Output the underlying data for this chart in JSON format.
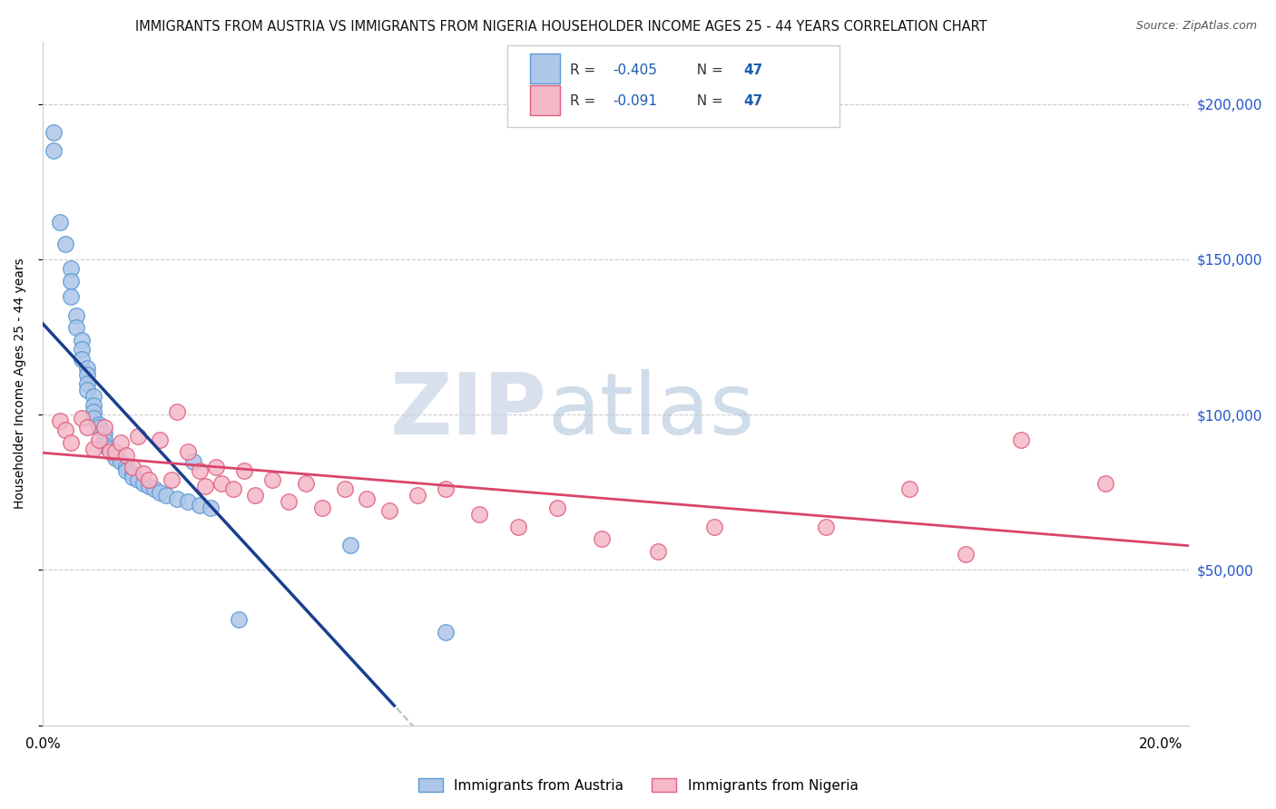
{
  "title": "IMMIGRANTS FROM AUSTRIA VS IMMIGRANTS FROM NIGERIA HOUSEHOLDER INCOME AGES 25 - 44 YEARS CORRELATION CHART",
  "source": "Source: ZipAtlas.com",
  "ylabel": "Householder Income Ages 25 - 44 years",
  "xlim": [
    0,
    0.205
  ],
  "ylim": [
    0,
    220000
  ],
  "austria_color": "#aec6e8",
  "austria_edge": "#5b9bd5",
  "nigeria_color": "#f4b8c8",
  "nigeria_edge": "#e06080",
  "austria_line_color": "#1a3f8f",
  "nigeria_line_color": "#d9446a",
  "R_austria": -0.405,
  "N_austria": 47,
  "R_nigeria": -0.091,
  "N_nigeria": 47,
  "austria_x": [
    0.002,
    0.002,
    0.003,
    0.004,
    0.005,
    0.005,
    0.005,
    0.006,
    0.006,
    0.007,
    0.007,
    0.007,
    0.008,
    0.008,
    0.008,
    0.008,
    0.009,
    0.009,
    0.009,
    0.009,
    0.01,
    0.01,
    0.011,
    0.011,
    0.011,
    0.012,
    0.013,
    0.013,
    0.014,
    0.015,
    0.015,
    0.016,
    0.016,
    0.017,
    0.018,
    0.019,
    0.02,
    0.021,
    0.022,
    0.024,
    0.026,
    0.027,
    0.028,
    0.03,
    0.035,
    0.055,
    0.072
  ],
  "austria_y": [
    191000,
    185000,
    162000,
    155000,
    147000,
    143000,
    138000,
    132000,
    128000,
    124000,
    121000,
    118000,
    115000,
    113000,
    110000,
    108000,
    106000,
    103000,
    101000,
    99000,
    97000,
    96000,
    94000,
    92000,
    90000,
    89000,
    87000,
    86000,
    85000,
    83000,
    82000,
    81000,
    80000,
    79000,
    78000,
    77000,
    76000,
    75000,
    74000,
    73000,
    72000,
    85000,
    71000,
    70000,
    34000,
    58000,
    30000
  ],
  "nigeria_x": [
    0.003,
    0.004,
    0.005,
    0.007,
    0.008,
    0.009,
    0.01,
    0.011,
    0.012,
    0.013,
    0.014,
    0.015,
    0.016,
    0.017,
    0.018,
    0.019,
    0.021,
    0.023,
    0.024,
    0.026,
    0.028,
    0.029,
    0.031,
    0.032,
    0.034,
    0.036,
    0.038,
    0.041,
    0.044,
    0.047,
    0.05,
    0.054,
    0.058,
    0.062,
    0.067,
    0.072,
    0.078,
    0.085,
    0.092,
    0.1,
    0.11,
    0.12,
    0.14,
    0.155,
    0.165,
    0.175,
    0.19
  ],
  "nigeria_y": [
    98000,
    95000,
    91000,
    99000,
    96000,
    89000,
    92000,
    96000,
    88000,
    88000,
    91000,
    87000,
    83000,
    93000,
    81000,
    79000,
    92000,
    79000,
    101000,
    88000,
    82000,
    77000,
    83000,
    78000,
    76000,
    82000,
    74000,
    79000,
    72000,
    78000,
    70000,
    76000,
    73000,
    69000,
    74000,
    76000,
    68000,
    64000,
    70000,
    60000,
    56000,
    64000,
    64000,
    76000,
    55000,
    92000,
    78000
  ],
  "watermark_zip": "ZIP",
  "watermark_atlas": "atlas",
  "background_color": "#ffffff",
  "grid_color": "#cccccc",
  "title_fontsize": 10.5,
  "label_fontsize": 10,
  "legend_R_color": "#1a5cb0",
  "legend_N_color": "#1a5cb0"
}
